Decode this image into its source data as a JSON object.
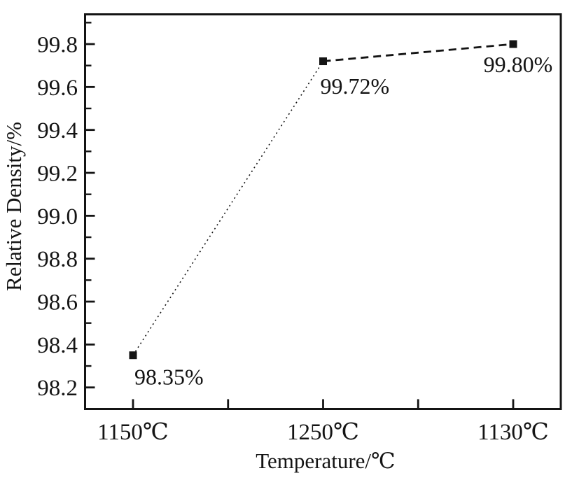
{
  "figure": {
    "background": "#ffffff",
    "ink_color": "#141414"
  },
  "axes": {
    "ylabel": "Relative Density/%",
    "xlabel": "Temperature/℃",
    "y_tick_labels": [
      "99.8",
      "99.6",
      "99.4",
      "99.2",
      "99.0",
      "98.8",
      "98.6",
      "98.4",
      "98.2"
    ],
    "x_tick_labels": [
      "1150℃",
      "1250℃",
      "1130℃"
    ]
  },
  "chart_data": {
    "type": "line",
    "categories": [
      "1150℃",
      "1250℃",
      "1130℃"
    ],
    "series": [
      {
        "name": "Relative Density",
        "values": [
          98.35,
          99.72,
          99.8
        ]
      }
    ],
    "point_labels": [
      "98.35%",
      "99.72%",
      "99.80%"
    ],
    "title": "",
    "xlabel": "Temperature/℃",
    "ylabel": "Relative Density/%",
    "ylim": [
      98.1,
      99.94
    ],
    "y_major_step": 0.2,
    "y_minor_step": 0.1,
    "grid": false,
    "legend": false,
    "line_color": "#141414",
    "line_style": "dashed",
    "marker": "filled-square"
  }
}
